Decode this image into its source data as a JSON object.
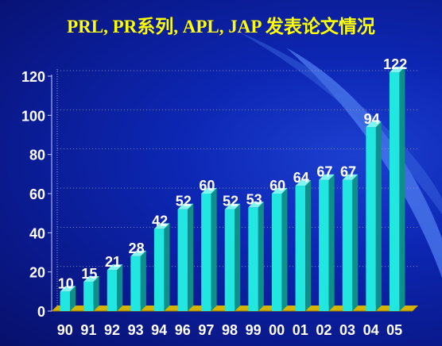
{
  "title": "PRL, PR系列, APL, JAP 发表论文情况",
  "colors": {
    "background": "#0d27b4",
    "title": "#ffff00",
    "bar_front": "#22e6e0",
    "bar_side": "#0e8f8a",
    "bar_top": "#7ff5f0",
    "floor": "#d4b400",
    "text": "#ffffff"
  },
  "chart_data": {
    "type": "bar",
    "title": "PRL, PR系列, APL, JAP 发表论文情况",
    "xlabel": "",
    "ylabel": "",
    "categories": [
      "90",
      "91",
      "92",
      "93",
      "94",
      "96",
      "97",
      "98",
      "99",
      "00",
      "01",
      "02",
      "03",
      "04",
      "05"
    ],
    "values": [
      10,
      15,
      21,
      28,
      42,
      52,
      60,
      52,
      53,
      60,
      64,
      67,
      67,
      94,
      122
    ],
    "ylim": [
      0,
      120
    ],
    "yticks": [
      0,
      20,
      40,
      60,
      80,
      100,
      120
    ],
    "data_labels": true,
    "grid": true,
    "legend": "none",
    "style": "3d"
  }
}
